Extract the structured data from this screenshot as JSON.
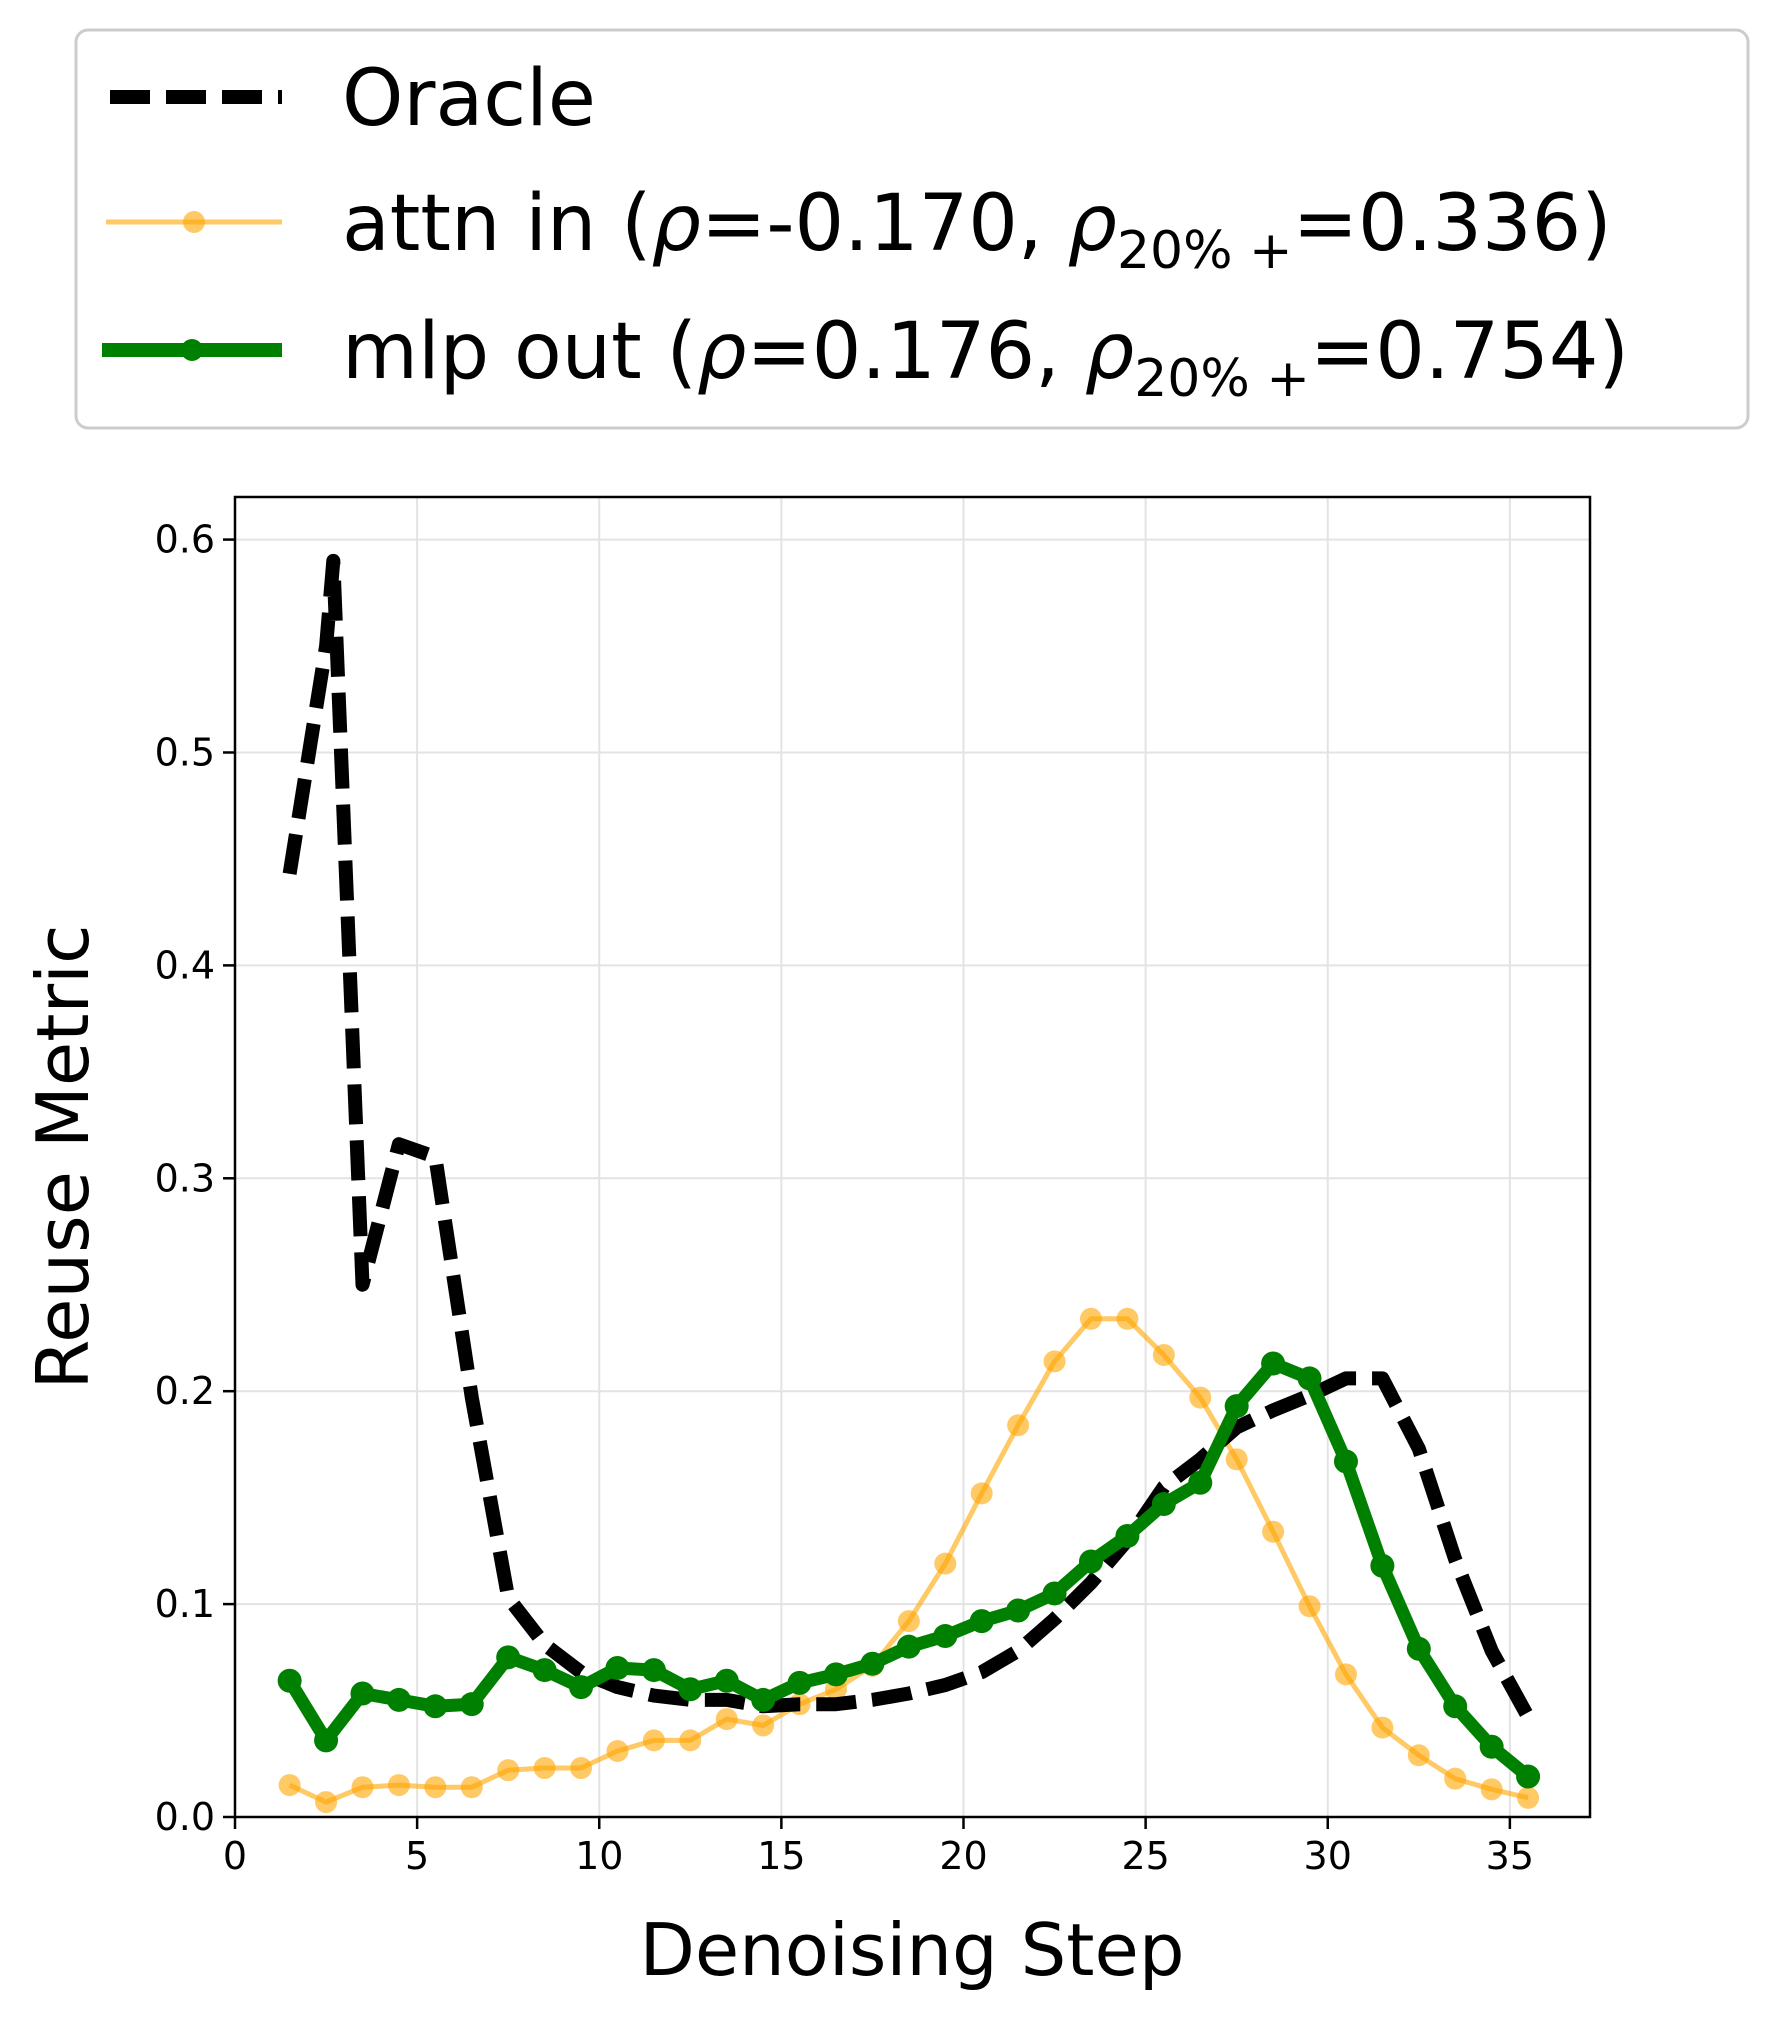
{
  "chart_data": {
    "type": "line",
    "xlabel": "Denoising Step",
    "ylabel": "Reuse Metric",
    "xlim": [
      0,
      37.2
    ],
    "ylim": [
      0,
      0.62
    ],
    "xticks": [
      "0",
      "5",
      "10",
      "15",
      "20",
      "25",
      "30",
      "35"
    ],
    "yticks": [
      "0.0",
      "0.1",
      "0.2",
      "0.3",
      "0.4",
      "0.5",
      "0.6"
    ],
    "grid": true,
    "legend_position": "top",
    "series": [
      {
        "name": "Oracle",
        "legend_label": "Oracle",
        "style": "dashed",
        "color": "#000000",
        "x": [
          1.5,
          2.5,
          2.7,
          3.5,
          4.5,
          5.5,
          6.5,
          7.5,
          8.5,
          9.5,
          10.5,
          11.5,
          12.5,
          13.5,
          14.5,
          15.5,
          16.5,
          17.5,
          18.5,
          19.5,
          20.5,
          21.5,
          22.5,
          23.5,
          24.5,
          25.5,
          26.5,
          27.5,
          28.5,
          29.5,
          30.5,
          31.5,
          32.5,
          33.5,
          34.5,
          35.5
        ],
        "y": [
          0.443,
          0.55,
          0.59,
          0.25,
          0.316,
          0.31,
          0.197,
          0.103,
          0.081,
          0.068,
          0.061,
          0.057,
          0.055,
          0.055,
          0.052,
          0.053,
          0.053,
          0.055,
          0.058,
          0.062,
          0.068,
          0.078,
          0.093,
          0.11,
          0.13,
          0.155,
          0.168,
          0.183,
          0.191,
          0.198,
          0.206,
          0.206,
          0.173,
          0.121,
          0.078,
          0.047
        ]
      },
      {
        "name": "attn in",
        "legend_prefix": "attn in (",
        "legend_rho": "=-0.170, ",
        "legend_rho20": "=0.336)",
        "style": "solid-marker",
        "color": "#ffa500",
        "x": [
          1.5,
          2.5,
          3.5,
          4.5,
          5.5,
          6.5,
          7.5,
          8.5,
          9.5,
          10.5,
          11.5,
          12.5,
          13.5,
          14.5,
          15.5,
          16.5,
          17.5,
          18.5,
          19.5,
          20.5,
          21.5,
          22.5,
          23.5,
          24.5,
          25.5,
          26.5,
          27.5,
          28.5,
          29.5,
          30.5,
          31.5,
          32.5,
          33.5,
          34.5,
          35.5
        ],
        "y": [
          0.015,
          0.007,
          0.014,
          0.015,
          0.014,
          0.014,
          0.022,
          0.023,
          0.023,
          0.031,
          0.036,
          0.036,
          0.046,
          0.043,
          0.053,
          0.06,
          0.071,
          0.092,
          0.119,
          0.152,
          0.184,
          0.214,
          0.234,
          0.234,
          0.217,
          0.197,
          0.168,
          0.134,
          0.099,
          0.067,
          0.042,
          0.029,
          0.018,
          0.013,
          0.009
        ]
      },
      {
        "name": "mlp out",
        "legend_prefix": "mlp out (",
        "legend_rho": "=0.176, ",
        "legend_rho20": "=0.754)",
        "style": "solid-marker-thick",
        "color": "#008000",
        "x": [
          1.5,
          2.5,
          3.5,
          4.5,
          5.5,
          6.5,
          7.5,
          8.5,
          9.5,
          10.5,
          11.5,
          12.5,
          13.5,
          14.5,
          15.5,
          16.5,
          17.5,
          18.5,
          19.5,
          20.5,
          21.5,
          22.5,
          23.5,
          24.5,
          25.5,
          26.5,
          27.5,
          28.5,
          29.5,
          30.5,
          31.5,
          32.5,
          33.5,
          34.5,
          35.5
        ],
        "y": [
          0.064,
          0.036,
          0.058,
          0.055,
          0.052,
          0.053,
          0.075,
          0.069,
          0.061,
          0.07,
          0.069,
          0.06,
          0.064,
          0.055,
          0.063,
          0.067,
          0.072,
          0.08,
          0.085,
          0.092,
          0.097,
          0.105,
          0.12,
          0.132,
          0.147,
          0.157,
          0.193,
          0.213,
          0.206,
          0.167,
          0.118,
          0.079,
          0.052,
          0.033,
          0.019
        ]
      }
    ]
  }
}
